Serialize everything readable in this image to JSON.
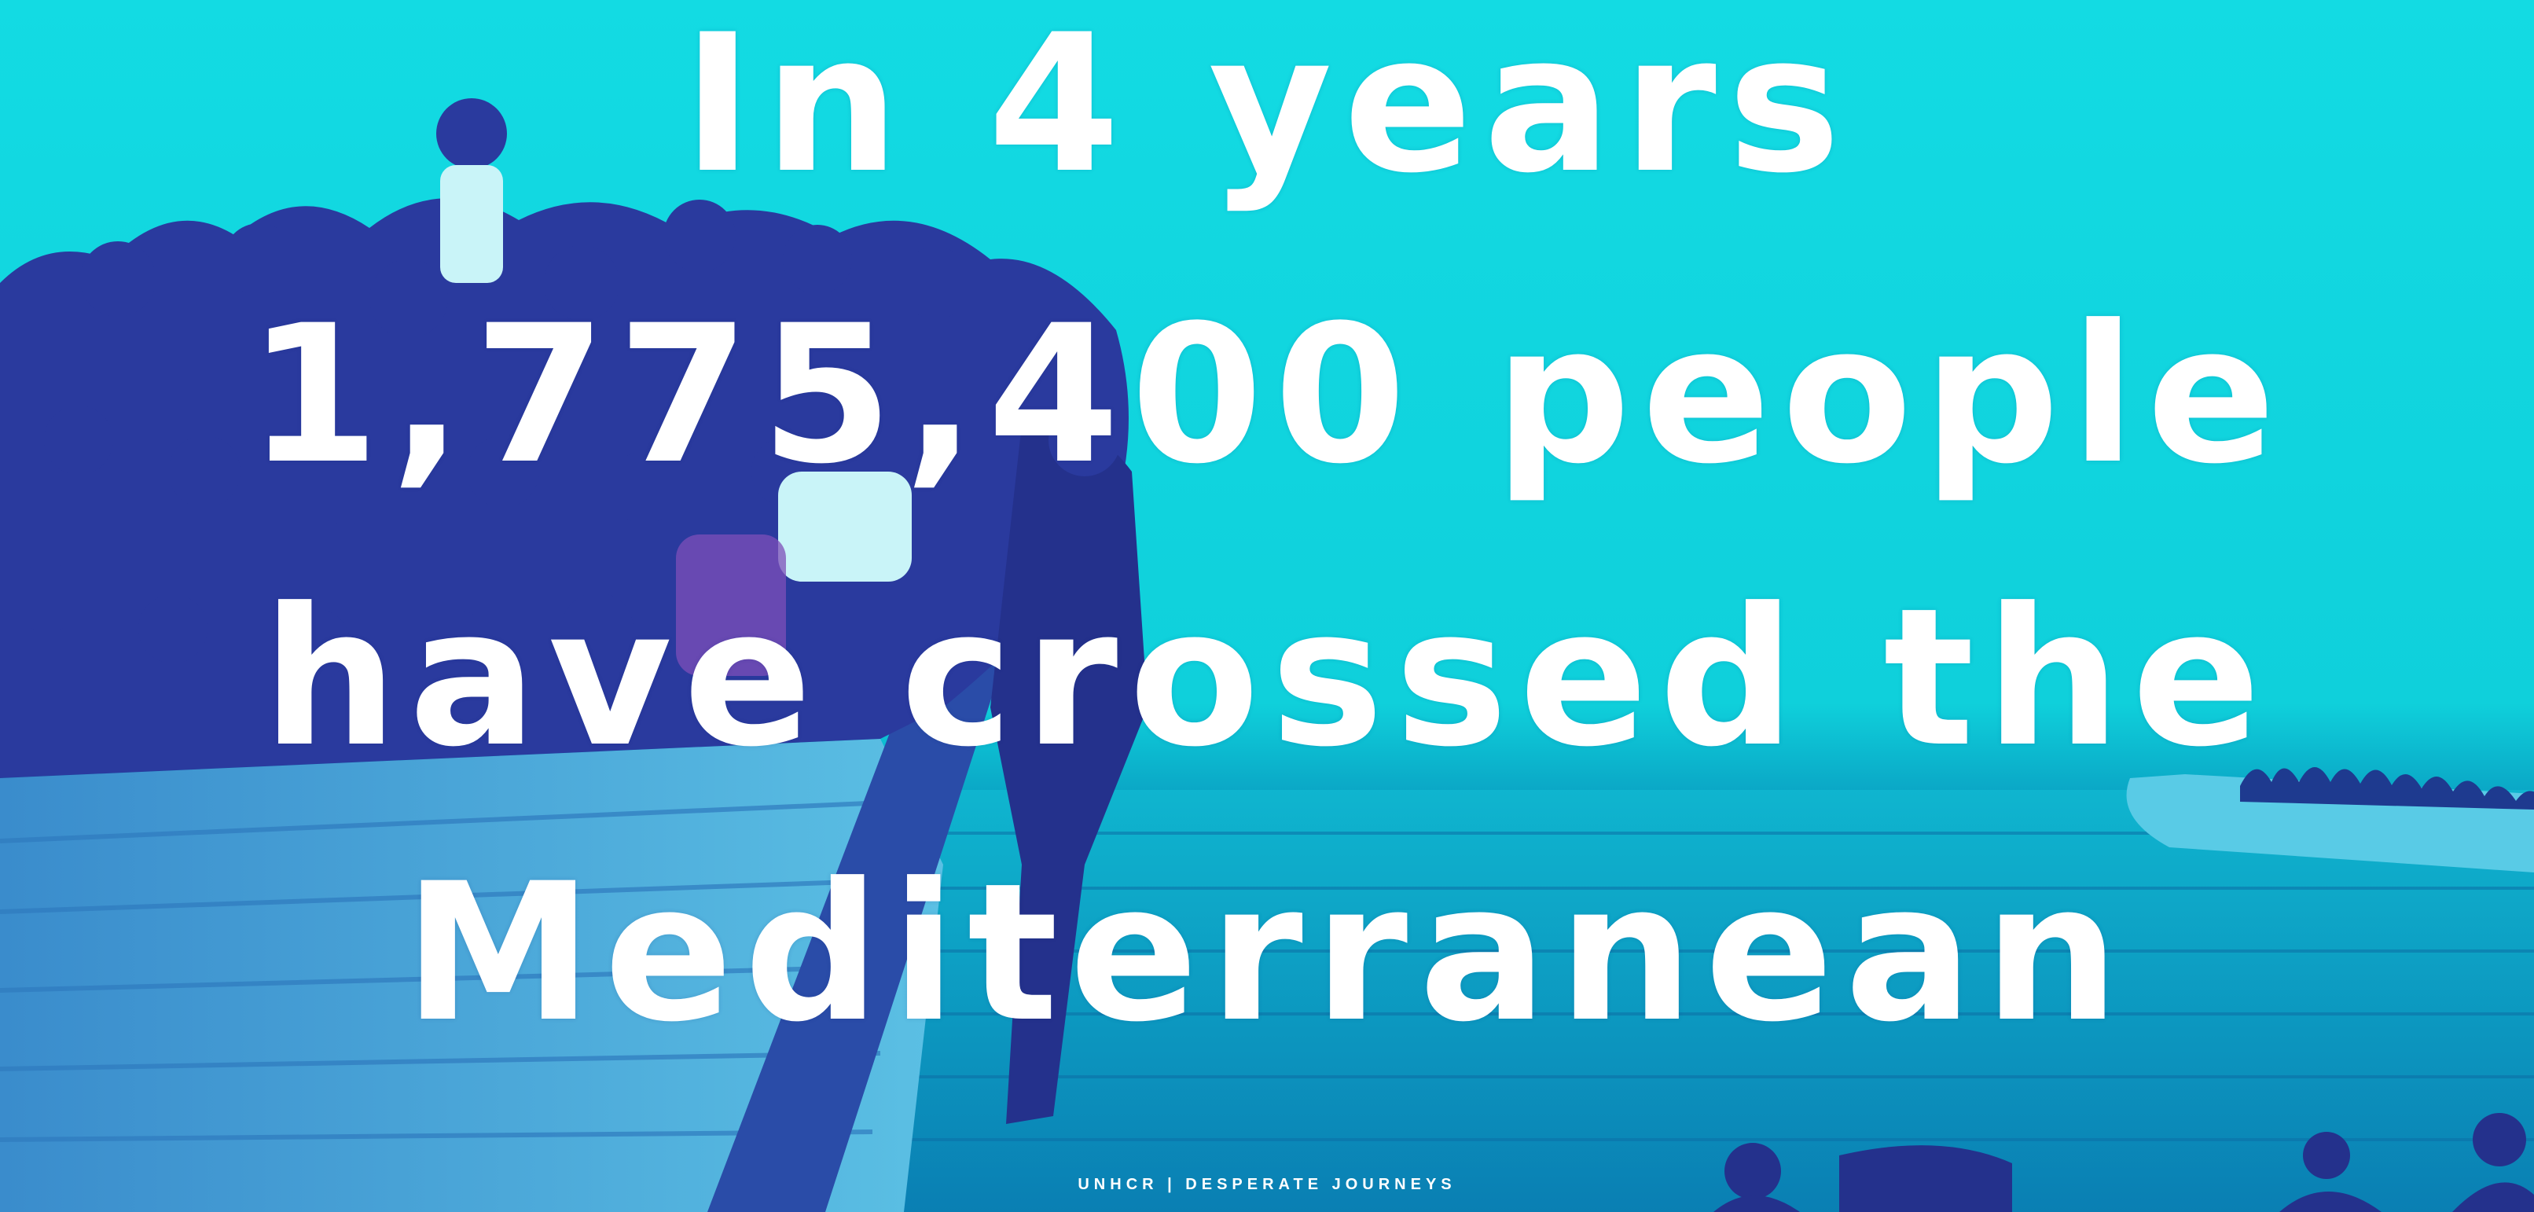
{
  "headline": {
    "line_1": "In 4 years",
    "line_2": "1,775,400 people",
    "line_3": "have crossed the",
    "line_4": "Mediterranean"
  },
  "credit": "UNHCR | DESPERATE JOURNEYS",
  "colors": {
    "sky": "#13dbe3",
    "sea": "#0a8fba",
    "crowd": "#2a3a9e",
    "boat": "#3f8fd0",
    "text": "#ffffff"
  }
}
